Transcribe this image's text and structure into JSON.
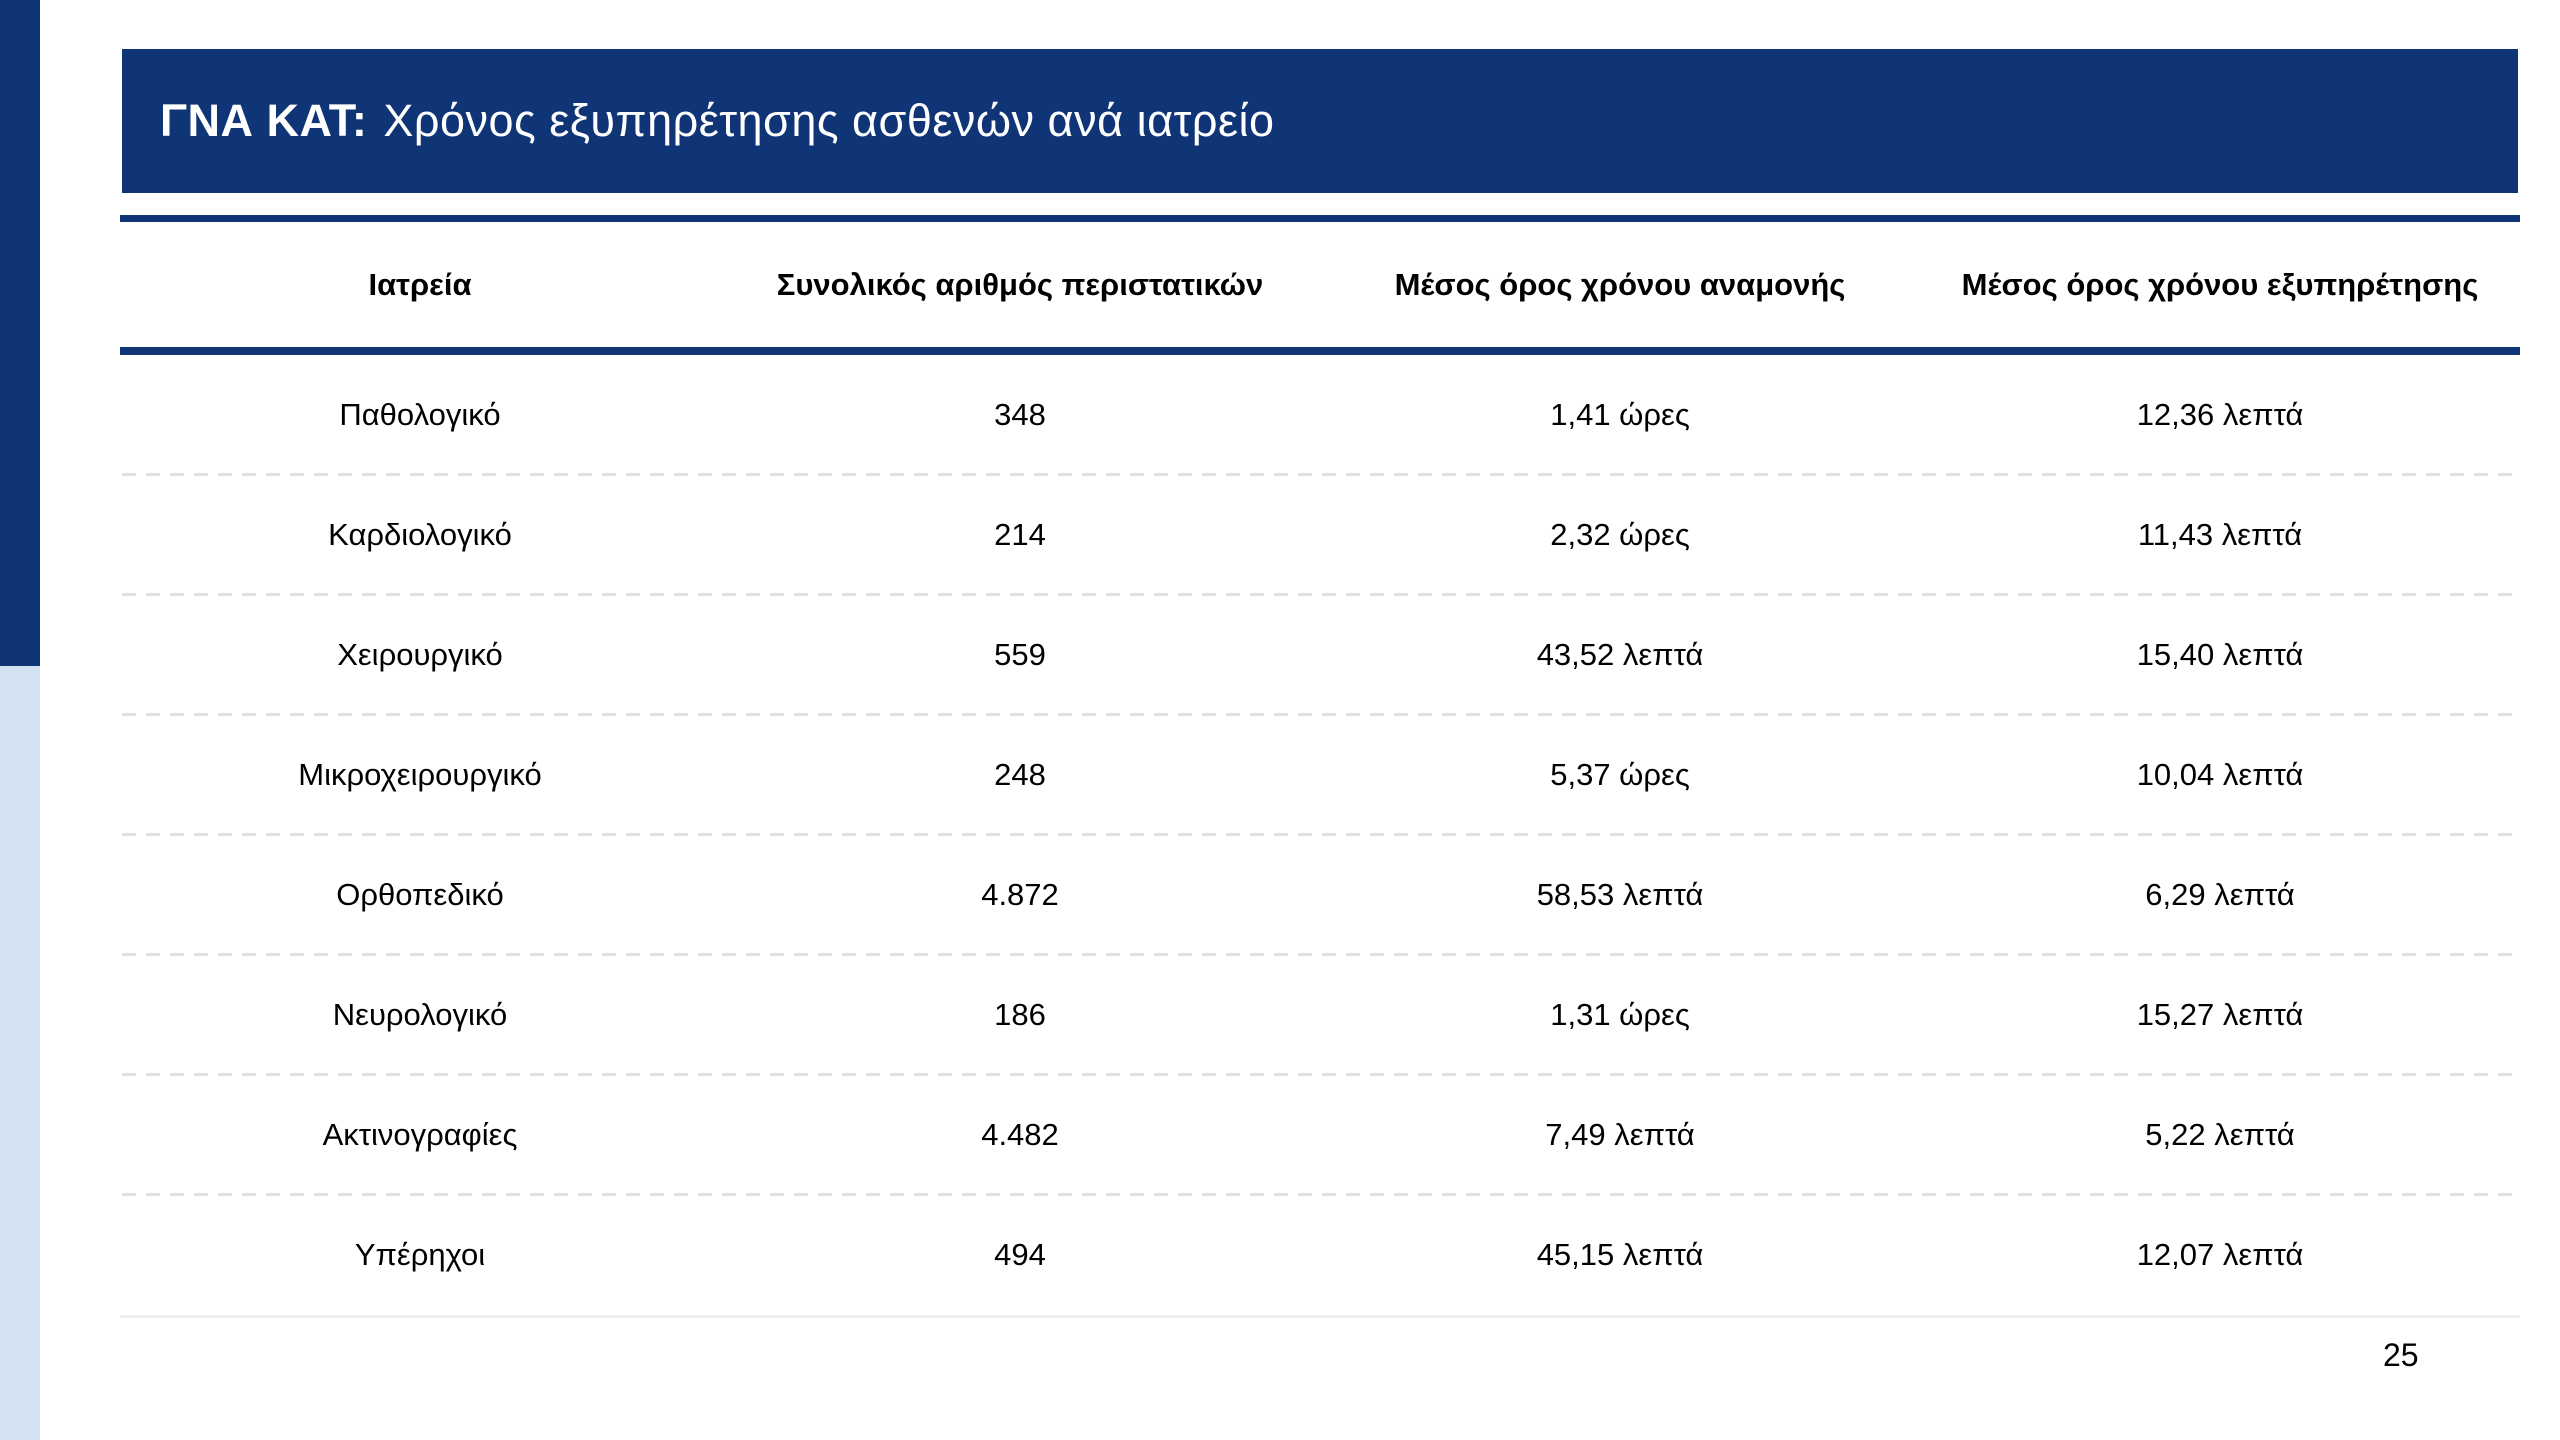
{
  "slide": {
    "title": {
      "prefix": "ΓΝΑ ΚΑΤ:",
      "text": "Χρόνος εξυπηρέτησης ασθενών ανά ιατρείο"
    },
    "page_number": "25",
    "colors": {
      "navy": "#0f3577",
      "light_blue": "#d2e2f2",
      "title_text": "#ffffff",
      "body_text": "#000000",
      "row_separator": "#e0e0e0",
      "table_bottom_border": "#efefef"
    }
  },
  "table": {
    "headers": [
      "Ιατρεία",
      "Συνολικός αριθμός περιστατικών",
      "Μέσος όρος χρόνου αναμονής",
      "Μέσος όρος χρόνου εξυπηρέτησης"
    ],
    "rows": [
      [
        "Παθολογικό",
        "348",
        "1,41 ώρες",
        "12,36 λεπτά"
      ],
      [
        "Καρδιολογικό",
        "214",
        "2,32 ώρες",
        "11,43 λεπτά"
      ],
      [
        "Χειρουργικό",
        "559",
        "43,52 λεπτά",
        "15,40 λεπτά"
      ],
      [
        "Μικροχειρουργικό",
        "248",
        "5,37 ώρες",
        "10,04 λεπτά"
      ],
      [
        "Ορθοπεδικό",
        "4.872",
        "58,53 λεπτά",
        "6,29 λεπτά"
      ],
      [
        "Νευρολογικό",
        "186",
        "1,31 ώρες",
        "15,27 λεπτά"
      ],
      [
        "Ακτινογραφίες",
        "4.482",
        "7,49 λεπτά",
        "5,22 λεπτά"
      ],
      [
        "Υπέρηχοι",
        "494",
        "45,15 λεπτά",
        "12,07 λεπτά"
      ]
    ]
  }
}
